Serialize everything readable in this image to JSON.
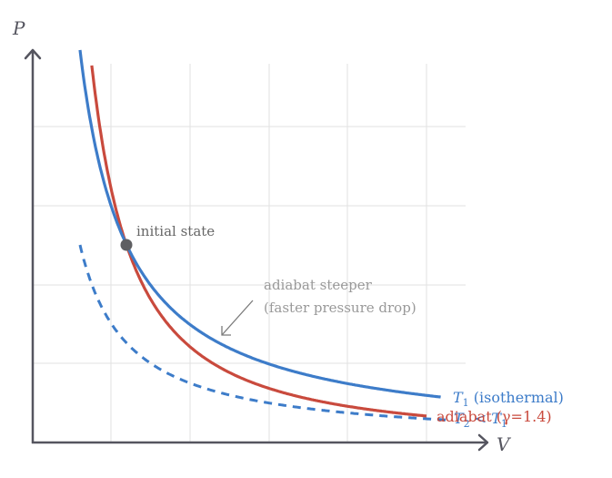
{
  "chart_data": {
    "type": "line",
    "title": "",
    "xlabel": "V",
    "ylabel": "P",
    "grid": true,
    "xlim": [
      0,
      5.5
    ],
    "ylim": [
      0,
      5
    ],
    "series": [
      {
        "name": "T1 (isothermal)",
        "label_main": "T",
        "label_sub": "1",
        "label_rest": " (isothermal)",
        "color": "#3d7cc9",
        "style": "solid",
        "k": 2.98,
        "exponent": 1.0,
        "v_start": 0.6,
        "v_end": 5.18
      },
      {
        "name": "adiabat (γ=1.4)",
        "label": "adiabat (γ=1.4)",
        "color": "#c94a3d",
        "style": "solid",
        "p0": 2.5,
        "v0": 1.19,
        "exponent": 1.4,
        "v_start": 0.75,
        "v_end": 5.0
      },
      {
        "name": "T2 < T1",
        "label_a": "T",
        "label_a_sub": "2",
        "label_mid": " < ",
        "label_b": "T",
        "label_b_sub": "1",
        "color": "#3d7cc9",
        "style": "dashed",
        "k": 1.5,
        "exponent": 1.0,
        "v_start": 0.6,
        "v_end": 5.3
      }
    ],
    "annotations": [
      {
        "text": "initial state",
        "v": 1.19,
        "p": 2.5
      },
      {
        "text_line1": "adiabat steeper",
        "text_line2": "(faster pressure drop)"
      }
    ]
  },
  "labels": {
    "y_axis": "P",
    "x_axis": "V",
    "initial_state": "initial state",
    "note_line1": "adiabat steeper",
    "note_line2": "(faster pressure drop)",
    "iso_T": "T",
    "iso_sub": "1",
    "iso_rest": " (isothermal)",
    "adiabat": "adiabat (γ=1.4)",
    "t2_T": "T",
    "t2_sub": "2",
    "t2_lt": " < ",
    "t1_T": "T",
    "t1_sub": "1"
  }
}
